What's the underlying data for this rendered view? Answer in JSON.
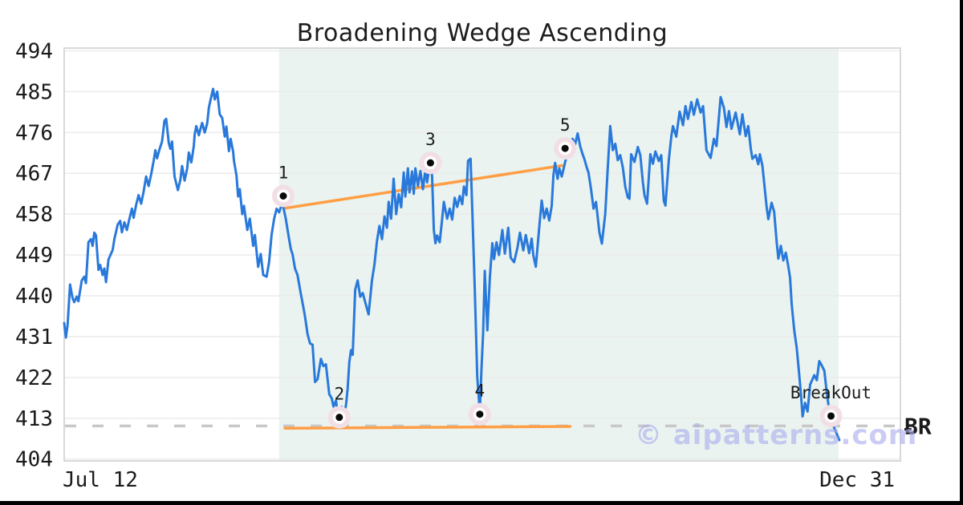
{
  "watermark": {
    "text": "© aipatterns.com",
    "color": "#ababee"
  },
  "chart_data": {
    "type": "line",
    "title": "Broadening Wedge Ascending",
    "x_axis": {
      "start_label": "Jul 12",
      "end_label": "Dec 31"
    },
    "y_ticks": [
      494,
      485,
      476,
      467,
      458,
      449,
      440,
      431,
      422,
      413,
      404
    ],
    "ylim": [
      403.6,
      494.6
    ],
    "grid": "horizontal",
    "legend": "none",
    "right_axis_label": "ɃR",
    "colors": {
      "price_line": "#2979db",
      "trendline": "#ff9e44",
      "breakout_dash": "#c8c8c8",
      "pattern_zone": "#eaf3ef",
      "marker_ring": "#f2dfe5",
      "marker_dot": "#0a0a0a",
      "gridline": "#ebebeb",
      "spine": "#d9d9d9"
    },
    "pattern_zone": {
      "from": 0.257,
      "to": 0.926
    },
    "breakout_level": {
      "value": 411.3,
      "style": "dashed",
      "from": 0.001,
      "to": 0.994
    },
    "trendlines": [
      {
        "name": "upper-resistance",
        "from": [
          0.264,
          459.3
        ],
        "to": [
          0.595,
          468.7
        ]
      },
      {
        "name": "lower-support",
        "from": [
          0.264,
          410.8
        ],
        "to": [
          0.605,
          411.2
        ]
      }
    ],
    "markers": [
      {
        "label": "1",
        "x": 0.262,
        "value": 462.0
      },
      {
        "label": "2",
        "x": 0.329,
        "value": 413.2
      },
      {
        "label": "3",
        "x": 0.438,
        "value": 469.3
      },
      {
        "label": "4",
        "x": 0.497,
        "value": 413.9
      },
      {
        "label": "5",
        "x": 0.599,
        "value": 472.5
      },
      {
        "label": "BreakOut",
        "x": 0.917,
        "value": 413.5
      }
    ],
    "points": [
      [
        0.0,
        434.0
      ],
      [
        0.002,
        430.8
      ],
      [
        0.004,
        433.5
      ],
      [
        0.007,
        442.5
      ],
      [
        0.01,
        439.5
      ],
      [
        0.012,
        438.6
      ],
      [
        0.015,
        439.8
      ],
      [
        0.017,
        438.8
      ],
      [
        0.021,
        443.4
      ],
      [
        0.024,
        444.2
      ],
      [
        0.026,
        442.8
      ],
      [
        0.029,
        451.8
      ],
      [
        0.032,
        452.5
      ],
      [
        0.034,
        451.0
      ],
      [
        0.036,
        453.9
      ],
      [
        0.038,
        453.3
      ],
      [
        0.041,
        445.7
      ],
      [
        0.043,
        446.8
      ],
      [
        0.046,
        444.6
      ],
      [
        0.048,
        446.0
      ],
      [
        0.05,
        443.0
      ],
      [
        0.053,
        448.0
      ],
      [
        0.058,
        450.1
      ],
      [
        0.06,
        452.5
      ],
      [
        0.064,
        455.7
      ],
      [
        0.067,
        456.5
      ],
      [
        0.069,
        454.0
      ],
      [
        0.072,
        456.2
      ],
      [
        0.075,
        454.5
      ],
      [
        0.078,
        457.0
      ],
      [
        0.081,
        459.2
      ],
      [
        0.083,
        457.2
      ],
      [
        0.086,
        460.0
      ],
      [
        0.089,
        462.2
      ],
      [
        0.092,
        460.3
      ],
      [
        0.095,
        463.0
      ],
      [
        0.098,
        466.3
      ],
      [
        0.101,
        464.2
      ],
      [
        0.104,
        466.8
      ],
      [
        0.107,
        469.8
      ],
      [
        0.109,
        472.1
      ],
      [
        0.111,
        470.3
      ],
      [
        0.114,
        472.3
      ],
      [
        0.117,
        474.0
      ],
      [
        0.12,
        478.6
      ],
      [
        0.122,
        479.0
      ],
      [
        0.125,
        473.7
      ],
      [
        0.127,
        472.4
      ],
      [
        0.129,
        474.0
      ],
      [
        0.132,
        466.3
      ],
      [
        0.136,
        463.3
      ],
      [
        0.139,
        465.6
      ],
      [
        0.141,
        468.6
      ],
      [
        0.144,
        465.4
      ],
      [
        0.147,
        468.0
      ],
      [
        0.149,
        471.6
      ],
      [
        0.152,
        469.4
      ],
      [
        0.155,
        473.0
      ],
      [
        0.156,
        475.6
      ],
      [
        0.158,
        477.4
      ],
      [
        0.161,
        475.4
      ],
      [
        0.163,
        476.8
      ],
      [
        0.165,
        478.1
      ],
      [
        0.168,
        476.0
      ],
      [
        0.171,
        478.0
      ],
      [
        0.173,
        481.5
      ],
      [
        0.176,
        484.0
      ],
      [
        0.178,
        485.6
      ],
      [
        0.18,
        483.3
      ],
      [
        0.183,
        485.0
      ],
      [
        0.186,
        480.0
      ],
      [
        0.189,
        479.2
      ],
      [
        0.192,
        475.1
      ],
      [
        0.194,
        477.3
      ],
      [
        0.197,
        471.9
      ],
      [
        0.199,
        474.6
      ],
      [
        0.202,
        471.8
      ],
      [
        0.203,
        469.8
      ],
      [
        0.206,
        466.5
      ],
      [
        0.208,
        461.9
      ],
      [
        0.21,
        463.5
      ],
      [
        0.213,
        458.0
      ],
      [
        0.215,
        459.8
      ],
      [
        0.219,
        454.5
      ],
      [
        0.222,
        457.0
      ],
      [
        0.226,
        451.0
      ],
      [
        0.228,
        453.4
      ],
      [
        0.232,
        446.4
      ],
      [
        0.235,
        449.2
      ],
      [
        0.238,
        444.6
      ],
      [
        0.242,
        444.2
      ],
      [
        0.245,
        447.4
      ],
      [
        0.248,
        453.4
      ],
      [
        0.251,
        456.9
      ],
      [
        0.254,
        459.2
      ],
      [
        0.257,
        458.4
      ],
      [
        0.26,
        460.0
      ],
      [
        0.262,
        459.6
      ],
      [
        0.265,
        457.0
      ],
      [
        0.268,
        453.5
      ],
      [
        0.271,
        450.3
      ],
      [
        0.273,
        449.2
      ],
      [
        0.276,
        446.0
      ],
      [
        0.279,
        444.6
      ],
      [
        0.283,
        440.4
      ],
      [
        0.286,
        437.5
      ],
      [
        0.288,
        435.4
      ],
      [
        0.291,
        431.6
      ],
      [
        0.294,
        429.5
      ],
      [
        0.297,
        429.2
      ],
      [
        0.3,
        421.0
      ],
      [
        0.303,
        421.6
      ],
      [
        0.307,
        426.1
      ],
      [
        0.31,
        424.5
      ],
      [
        0.313,
        424.9
      ],
      [
        0.317,
        418.3
      ],
      [
        0.32,
        417.4
      ],
      [
        0.322,
        415.6
      ],
      [
        0.325,
        416.9
      ],
      [
        0.327,
        413.9
      ],
      [
        0.329,
        412.9
      ],
      [
        0.332,
        415.5
      ],
      [
        0.334,
        412.9
      ],
      [
        0.337,
        416.0
      ],
      [
        0.339,
        419.5
      ],
      [
        0.341,
        425.4
      ],
      [
        0.343,
        428.0
      ],
      [
        0.345,
        427.0
      ],
      [
        0.348,
        441.3
      ],
      [
        0.351,
        443.4
      ],
      [
        0.354,
        439.8
      ],
      [
        0.357,
        440.6
      ],
      [
        0.36,
        438.6
      ],
      [
        0.364,
        435.9
      ],
      [
        0.368,
        443.4
      ],
      [
        0.371,
        446.9
      ],
      [
        0.374,
        452.0
      ],
      [
        0.377,
        455.4
      ],
      [
        0.38,
        452.5
      ],
      [
        0.383,
        457.5
      ],
      [
        0.386,
        455.0
      ],
      [
        0.388,
        460.7
      ],
      [
        0.391,
        457.0
      ],
      [
        0.394,
        465.8
      ],
      [
        0.397,
        458.0
      ],
      [
        0.4,
        462.4
      ],
      [
        0.403,
        459.5
      ],
      [
        0.406,
        467.2
      ],
      [
        0.408,
        461.9
      ],
      [
        0.411,
        468.1
      ],
      [
        0.413,
        462.8
      ],
      [
        0.416,
        467.4
      ],
      [
        0.418,
        462.5
      ],
      [
        0.42,
        468.1
      ],
      [
        0.423,
        464.2
      ],
      [
        0.426,
        467.5
      ],
      [
        0.429,
        463.5
      ],
      [
        0.432,
        467.8
      ],
      [
        0.434,
        465.0
      ],
      [
        0.437,
        468.8
      ],
      [
        0.439,
        468.9
      ],
      [
        0.44,
        466.0
      ],
      [
        0.442,
        454.5
      ],
      [
        0.444,
        451.6
      ],
      [
        0.446,
        453.3
      ],
      [
        0.449,
        451.8
      ],
      [
        0.452,
        457.0
      ],
      [
        0.454,
        460.7
      ],
      [
        0.458,
        457.0
      ],
      [
        0.461,
        459.2
      ],
      [
        0.464,
        456.8
      ],
      [
        0.467,
        461.6
      ],
      [
        0.47,
        459.6
      ],
      [
        0.473,
        462.0
      ],
      [
        0.476,
        460.2
      ],
      [
        0.478,
        464.1
      ],
      [
        0.481,
        462.2
      ],
      [
        0.483,
        469.8
      ],
      [
        0.486,
        470.2
      ],
      [
        0.488,
        459.0
      ],
      [
        0.491,
        441.6
      ],
      [
        0.494,
        422.2
      ],
      [
        0.497,
        414.3
      ],
      [
        0.499,
        424.0
      ],
      [
        0.501,
        431.6
      ],
      [
        0.503,
        445.5
      ],
      [
        0.506,
        432.4
      ],
      [
        0.509,
        444.0
      ],
      [
        0.512,
        451.6
      ],
      [
        0.514,
        448.1
      ],
      [
        0.517,
        451.8
      ],
      [
        0.52,
        449.0
      ],
      [
        0.524,
        454.5
      ],
      [
        0.527,
        449.3
      ],
      [
        0.531,
        455.0
      ],
      [
        0.534,
        448.4
      ],
      [
        0.538,
        447.4
      ],
      [
        0.542,
        450.6
      ],
      [
        0.545,
        453.9
      ],
      [
        0.549,
        450.0
      ],
      [
        0.552,
        453.4
      ],
      [
        0.556,
        449.4
      ],
      [
        0.559,
        452.6
      ],
      [
        0.561,
        448.9
      ],
      [
        0.564,
        446.4
      ],
      [
        0.568,
        455.0
      ],
      [
        0.571,
        461.0
      ],
      [
        0.574,
        457.1
      ],
      [
        0.577,
        459.2
      ],
      [
        0.58,
        456.6
      ],
      [
        0.583,
        459.8
      ],
      [
        0.585,
        466.5
      ],
      [
        0.587,
        469.3
      ],
      [
        0.59,
        465.8
      ],
      [
        0.592,
        468.1
      ],
      [
        0.595,
        466.3
      ],
      [
        0.598,
        468.6
      ],
      [
        0.601,
        471.0
      ],
      [
        0.605,
        473.4
      ],
      [
        0.608,
        474.6
      ],
      [
        0.611,
        473.4
      ],
      [
        0.614,
        475.8
      ],
      [
        0.617,
        473.0
      ],
      [
        0.62,
        471.2
      ],
      [
        0.622,
        470.2
      ],
      [
        0.625,
        468.2
      ],
      [
        0.627,
        467.2
      ],
      [
        0.63,
        463.5
      ],
      [
        0.633,
        459.2
      ],
      [
        0.636,
        460.7
      ],
      [
        0.64,
        454.0
      ],
      [
        0.643,
        451.5
      ],
      [
        0.647,
        458.0
      ],
      [
        0.65,
        468.1
      ],
      [
        0.653,
        477.4
      ],
      [
        0.656,
        472.1
      ],
      [
        0.659,
        473.5
      ],
      [
        0.662,
        469.9
      ],
      [
        0.665,
        471.0
      ],
      [
        0.668,
        468.3
      ],
      [
        0.671,
        464.0
      ],
      [
        0.674,
        461.7
      ],
      [
        0.676,
        461.4
      ],
      [
        0.678,
        471.2
      ],
      [
        0.682,
        469.5
      ],
      [
        0.686,
        472.8
      ],
      [
        0.689,
        471.0
      ],
      [
        0.692,
        465.0
      ],
      [
        0.694,
        462.2
      ],
      [
        0.697,
        460.3
      ],
      [
        0.701,
        471.2
      ],
      [
        0.704,
        469.1
      ],
      [
        0.707,
        471.8
      ],
      [
        0.711,
        469.7
      ],
      [
        0.714,
        471.0
      ],
      [
        0.717,
        461.0
      ],
      [
        0.719,
        459.9
      ],
      [
        0.723,
        469.9
      ],
      [
        0.726,
        475.1
      ],
      [
        0.728,
        477.4
      ],
      [
        0.732,
        475.1
      ],
      [
        0.736,
        480.6
      ],
      [
        0.74,
        477.6
      ],
      [
        0.743,
        481.8
      ],
      [
        0.746,
        479.0
      ],
      [
        0.75,
        482.7
      ],
      [
        0.753,
        479.9
      ],
      [
        0.757,
        483.3
      ],
      [
        0.761,
        480.4
      ],
      [
        0.764,
        481.8
      ],
      [
        0.768,
        472.1
      ],
      [
        0.773,
        470.4
      ],
      [
        0.777,
        474.6
      ],
      [
        0.78,
        473.0
      ],
      [
        0.785,
        483.8
      ],
      [
        0.789,
        481.4
      ],
      [
        0.792,
        477.2
      ],
      [
        0.795,
        480.7
      ],
      [
        0.798,
        476.8
      ],
      [
        0.803,
        480.4
      ],
      [
        0.808,
        475.6
      ],
      [
        0.811,
        480.0
      ],
      [
        0.815,
        475.2
      ],
      [
        0.818,
        477.4
      ],
      [
        0.821,
        472.5
      ],
      [
        0.823,
        470.2
      ],
      [
        0.827,
        471.0
      ],
      [
        0.83,
        469.0
      ],
      [
        0.832,
        471.2
      ],
      [
        0.835,
        468.6
      ],
      [
        0.84,
        459.6
      ],
      [
        0.842,
        456.9
      ],
      [
        0.846,
        460.5
      ],
      [
        0.849,
        458.5
      ],
      [
        0.852,
        451.9
      ],
      [
        0.854,
        448.2
      ],
      [
        0.857,
        451.0
      ],
      [
        0.86,
        447.8
      ],
      [
        0.863,
        449.5
      ],
      [
        0.866,
        446.4
      ],
      [
        0.868,
        444.0
      ],
      [
        0.87,
        438.2
      ],
      [
        0.873,
        432.4
      ],
      [
        0.876,
        428.5
      ],
      [
        0.878,
        424.6
      ],
      [
        0.881,
        418.5
      ],
      [
        0.883,
        413.4
      ],
      [
        0.886,
        416.4
      ],
      [
        0.889,
        414.5
      ],
      [
        0.892,
        420.4
      ],
      [
        0.897,
        422.5
      ],
      [
        0.9,
        421.4
      ],
      [
        0.903,
        425.6
      ],
      [
        0.905,
        425.0
      ],
      [
        0.909,
        423.5
      ],
      [
        0.912,
        418.6
      ],
      [
        0.915,
        414.6
      ],
      [
        0.917,
        413.2
      ],
      [
        0.921,
        410.8
      ],
      [
        0.924,
        409.5
      ],
      [
        0.927,
        408.2
      ]
    ]
  }
}
